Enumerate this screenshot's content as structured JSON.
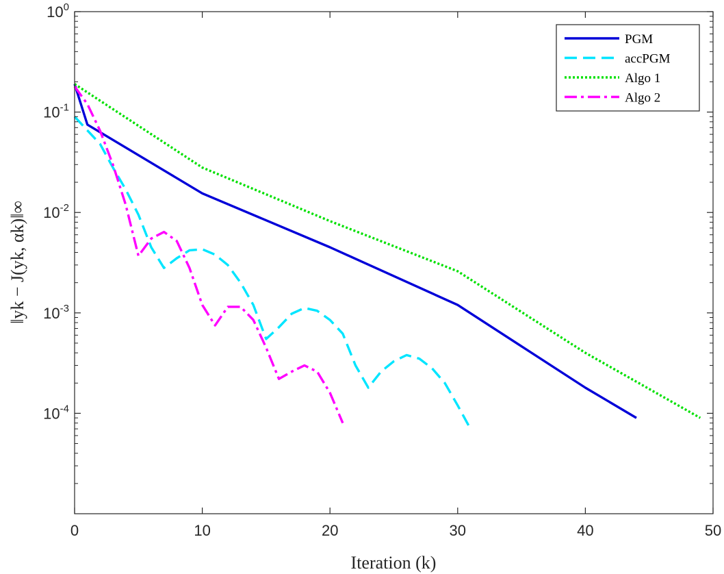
{
  "chart_data": {
    "type": "line",
    "title": "",
    "xlabel": "Iteration (k)",
    "ylabel": "‖yk − J(yk, αk)‖∞",
    "xlim": [
      0,
      50
    ],
    "ylim": [
      1e-05,
      1
    ],
    "yscale": "log",
    "xticks": [
      0,
      10,
      20,
      30,
      40,
      50
    ],
    "yticks": [
      {
        "value": 1,
        "base": "10",
        "exp": "0"
      },
      {
        "value": 0.1,
        "base": "10",
        "exp": "-1"
      },
      {
        "value": 0.01,
        "base": "10",
        "exp": "-2"
      },
      {
        "value": 0.001,
        "base": "10",
        "exp": "-3"
      },
      {
        "value": 0.0001,
        "base": "10",
        "exp": "-4"
      }
    ],
    "grid": false,
    "legend_position": "top-right",
    "series": [
      {
        "name": "PGM",
        "color": "#0000d8",
        "style": "solid",
        "x": [
          0,
          1,
          10,
          20,
          30,
          40,
          44
        ],
        "y": [
          0.19,
          0.075,
          0.0155,
          0.0045,
          0.0012,
          0.00018,
          9e-05
        ]
      },
      {
        "name": "accPGM",
        "color": "#00e5ff",
        "style": "dashed",
        "x": [
          0,
          2,
          3,
          4,
          5,
          6,
          7,
          8,
          9,
          10,
          11,
          12,
          13,
          14,
          15,
          16,
          17,
          18,
          19,
          20,
          21,
          22,
          23,
          24,
          25,
          26,
          27,
          28,
          29,
          30,
          31
        ],
        "y": [
          0.09,
          0.048,
          0.028,
          0.017,
          0.0095,
          0.0045,
          0.0028,
          0.0035,
          0.0042,
          0.0043,
          0.0038,
          0.003,
          0.002,
          0.0012,
          0.00055,
          0.00072,
          0.00098,
          0.00112,
          0.00105,
          0.00085,
          0.00062,
          0.0003,
          0.00018,
          0.00026,
          0.00033,
          0.00038,
          0.00035,
          0.00028,
          0.0002,
          0.00012,
          7e-05
        ]
      },
      {
        "name": "Algo 1",
        "color": "#00e000",
        "style": "dotted",
        "x": [
          0,
          10,
          20,
          30,
          40,
          49
        ],
        "y": [
          0.19,
          0.028,
          0.0082,
          0.0026,
          0.0004,
          9e-05
        ]
      },
      {
        "name": "Algo 2",
        "color": "#ff00ff",
        "style": "dashdot",
        "x": [
          0,
          1,
          2,
          3,
          4,
          5,
          6,
          7,
          8,
          9,
          10,
          11,
          12,
          13,
          14,
          15,
          16,
          17,
          18,
          19,
          20,
          21
        ],
        "y": [
          0.18,
          0.12,
          0.065,
          0.03,
          0.012,
          0.0037,
          0.0055,
          0.0064,
          0.0052,
          0.0028,
          0.0012,
          0.00075,
          0.00115,
          0.00115,
          0.00085,
          0.00045,
          0.00022,
          0.00026,
          0.0003,
          0.00026,
          0.00016,
          8e-05
        ]
      }
    ]
  }
}
